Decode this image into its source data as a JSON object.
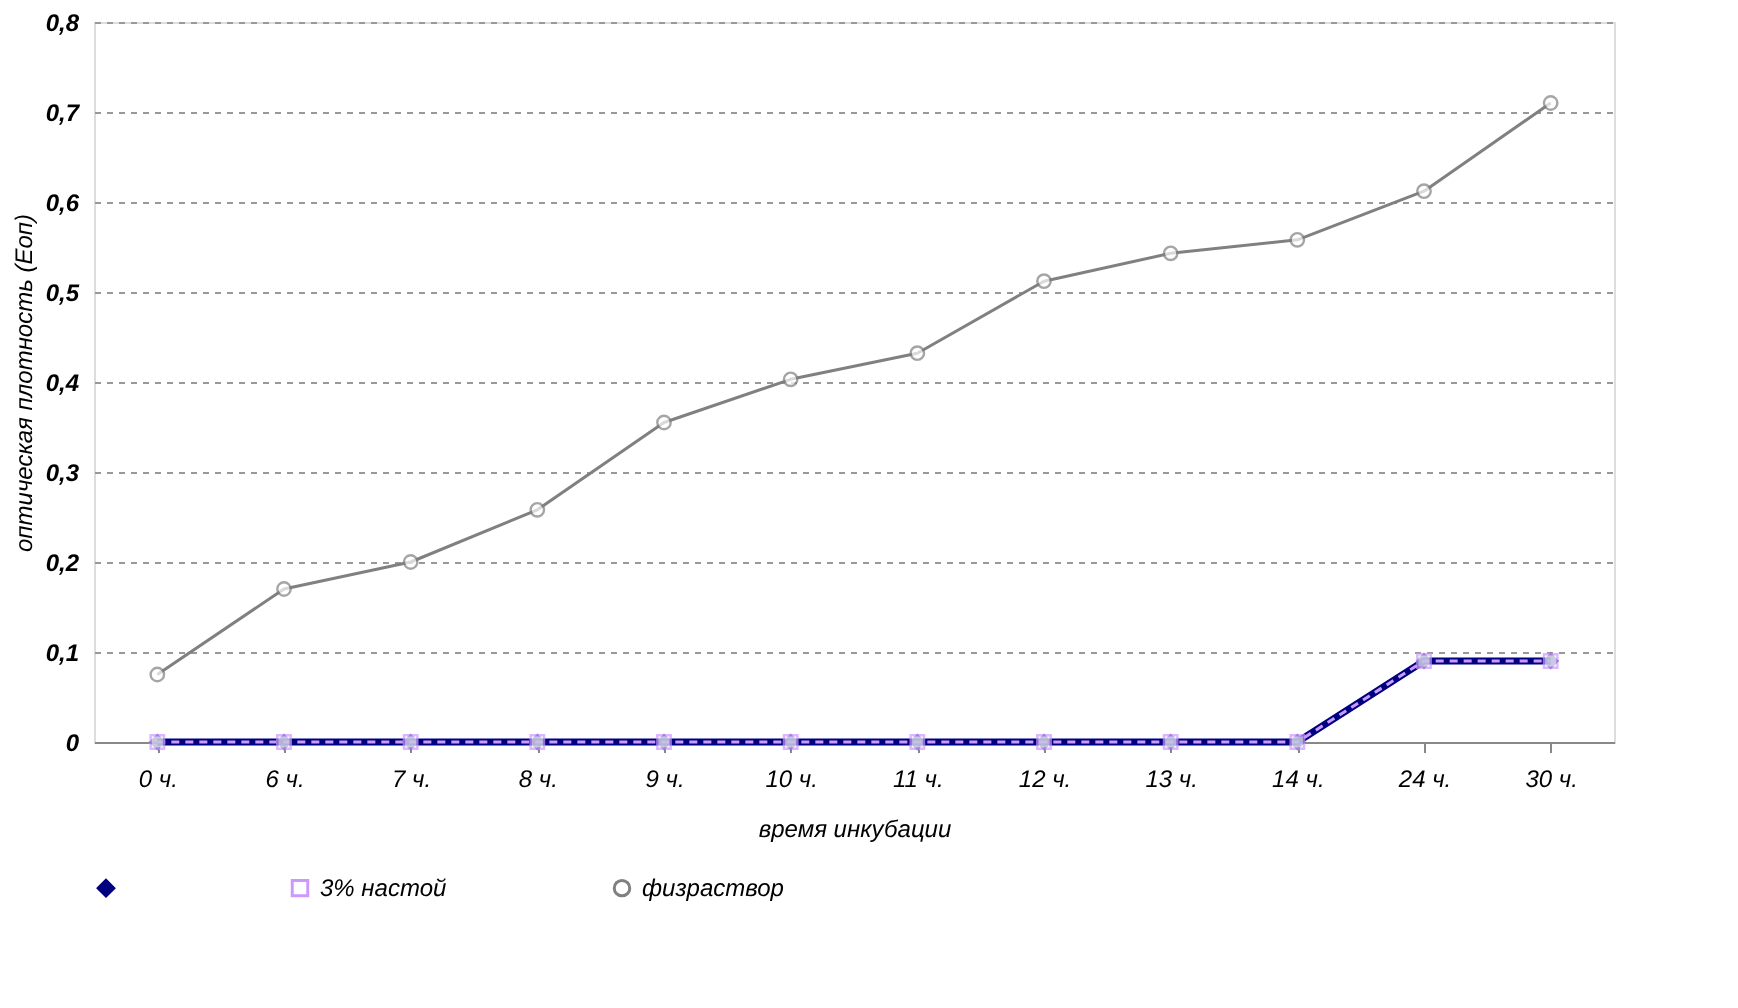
{
  "chart_data": {
    "type": "line",
    "xlabel": "время инкубации",
    "ylabel": "оптическая плотность (Еоп)",
    "categories": [
      "0 ч.",
      "6 ч.",
      "7 ч.",
      "8 ч.",
      "9 ч.",
      "10 ч.",
      "11 ч.",
      "12 ч.",
      "13 ч.",
      "14 ч.",
      "24 ч.",
      "30 ч."
    ],
    "series": [
      {
        "color": "#000080",
        "marker": "diamond",
        "line_style": "solid",
        "values": [
          0,
          0,
          0,
          0,
          0,
          0,
          0,
          0,
          0,
          0,
          0.09,
          0.09
        ]
      },
      {
        "name": "3% настой",
        "color": "#cc99ff",
        "marker": "square",
        "line_style": "dashed",
        "values": [
          0,
          0,
          0,
          0,
          0,
          0,
          0,
          0,
          0,
          0,
          0.09,
          0.09
        ]
      },
      {
        "name": "физраствор",
        "color": "#808080",
        "marker": "circle",
        "line_style": "solid",
        "values": [
          0.075,
          0.17,
          0.2,
          0.258,
          0.355,
          0.403,
          0.432,
          0.512,
          0.543,
          0.558,
          0.612,
          0.71
        ]
      }
    ],
    "ylim": [
      0,
      0.8
    ],
    "yticks": [
      0,
      {
        "value": 0.1,
        "label": "0,1"
      },
      {
        "value": 0.2,
        "label": "0,2"
      },
      {
        "value": 0.3,
        "label": "0,3"
      },
      {
        "value": 0.4,
        "label": "0,4"
      },
      {
        "value": 0.5,
        "label": "0,5"
      },
      {
        "value": 0.6,
        "label": "0,6"
      },
      {
        "value": 0.7,
        "label": "0,7"
      },
      {
        "value": 0.8,
        "label": "0,8"
      }
    ],
    "grid": "y",
    "legend": "bottom"
  }
}
